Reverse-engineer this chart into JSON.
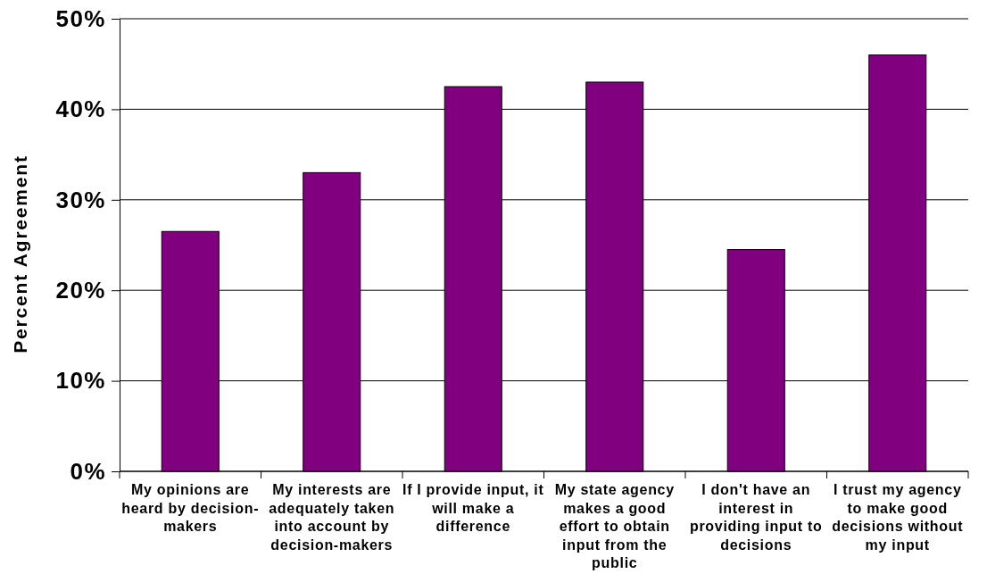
{
  "chart_data": {
    "type": "bar",
    "ylabel": "Percent Agreement",
    "categories": [
      "My opinions are heard by decision-makers",
      "My interests are adequately taken into account by decision-makers",
      "If I provide input, it will make a difference",
      "My state agency makes a good effort to obtain input from the public",
      "I don't have an interest in providing input to decisions",
      "I trust my agency to make good decisions without my input"
    ],
    "values": [
      26.5,
      33,
      42.5,
      43,
      24.5,
      46
    ],
    "color": "#800080",
    "ylim": [
      0,
      50
    ],
    "yticks": [
      {
        "value": 0,
        "label": "0%"
      },
      {
        "value": 10,
        "label": "10%"
      },
      {
        "value": 20,
        "label": "20%"
      },
      {
        "value": 30,
        "label": "30%"
      },
      {
        "value": 40,
        "label": "40%"
      },
      {
        "value": 50,
        "label": "50%"
      }
    ],
    "grid": "y"
  }
}
